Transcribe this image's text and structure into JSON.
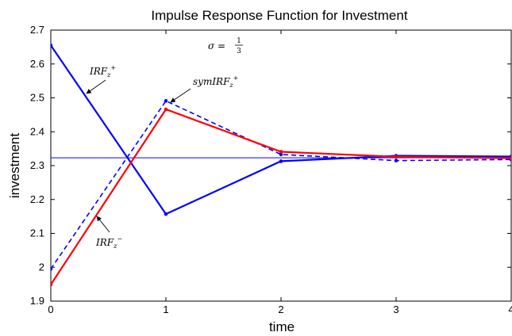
{
  "chart_data": {
    "type": "line",
    "title": "Impulse Response Function for Investment",
    "xlabel": "time",
    "ylabel": "investment",
    "xlim": [
      0,
      4
    ],
    "ylim": [
      1.9,
      2.7
    ],
    "xticks": [
      0,
      1,
      2,
      3,
      4
    ],
    "yticks": [
      1.9,
      2,
      2.1,
      2.2,
      2.3,
      2.4,
      2.5,
      2.6,
      2.7
    ],
    "x": [
      0,
      1,
      2,
      3,
      4
    ],
    "series": [
      {
        "name": "IRF_z^+",
        "color": "#0000ff",
        "style": "solid",
        "values": [
          2.655,
          2.157,
          2.313,
          2.329,
          2.327
        ]
      },
      {
        "name": "symIRF_z^+",
        "color": "#0000ff",
        "style": "dashed",
        "values": [
          1.995,
          2.491,
          2.333,
          2.315,
          2.318
        ]
      },
      {
        "name": "IRF_z^-",
        "color": "#ff0000",
        "style": "solid",
        "values": [
          1.949,
          2.466,
          2.341,
          2.326,
          2.322
        ]
      }
    ],
    "reference_line": {
      "y": 2.323,
      "color": "#0000ff",
      "style": "solid"
    },
    "annotations": {
      "sigma": {
        "text": "σ =",
        "num": "1",
        "den": "3"
      },
      "irf_plus": {
        "base": "IRF",
        "sub": "z",
        "sup": "+"
      },
      "sym_irf_plus": {
        "base": "symIRF",
        "sub": "z",
        "sup": "+"
      },
      "irf_minus": {
        "base": "IRF",
        "sub": "z",
        "sup": "−"
      }
    },
    "grid": false
  }
}
